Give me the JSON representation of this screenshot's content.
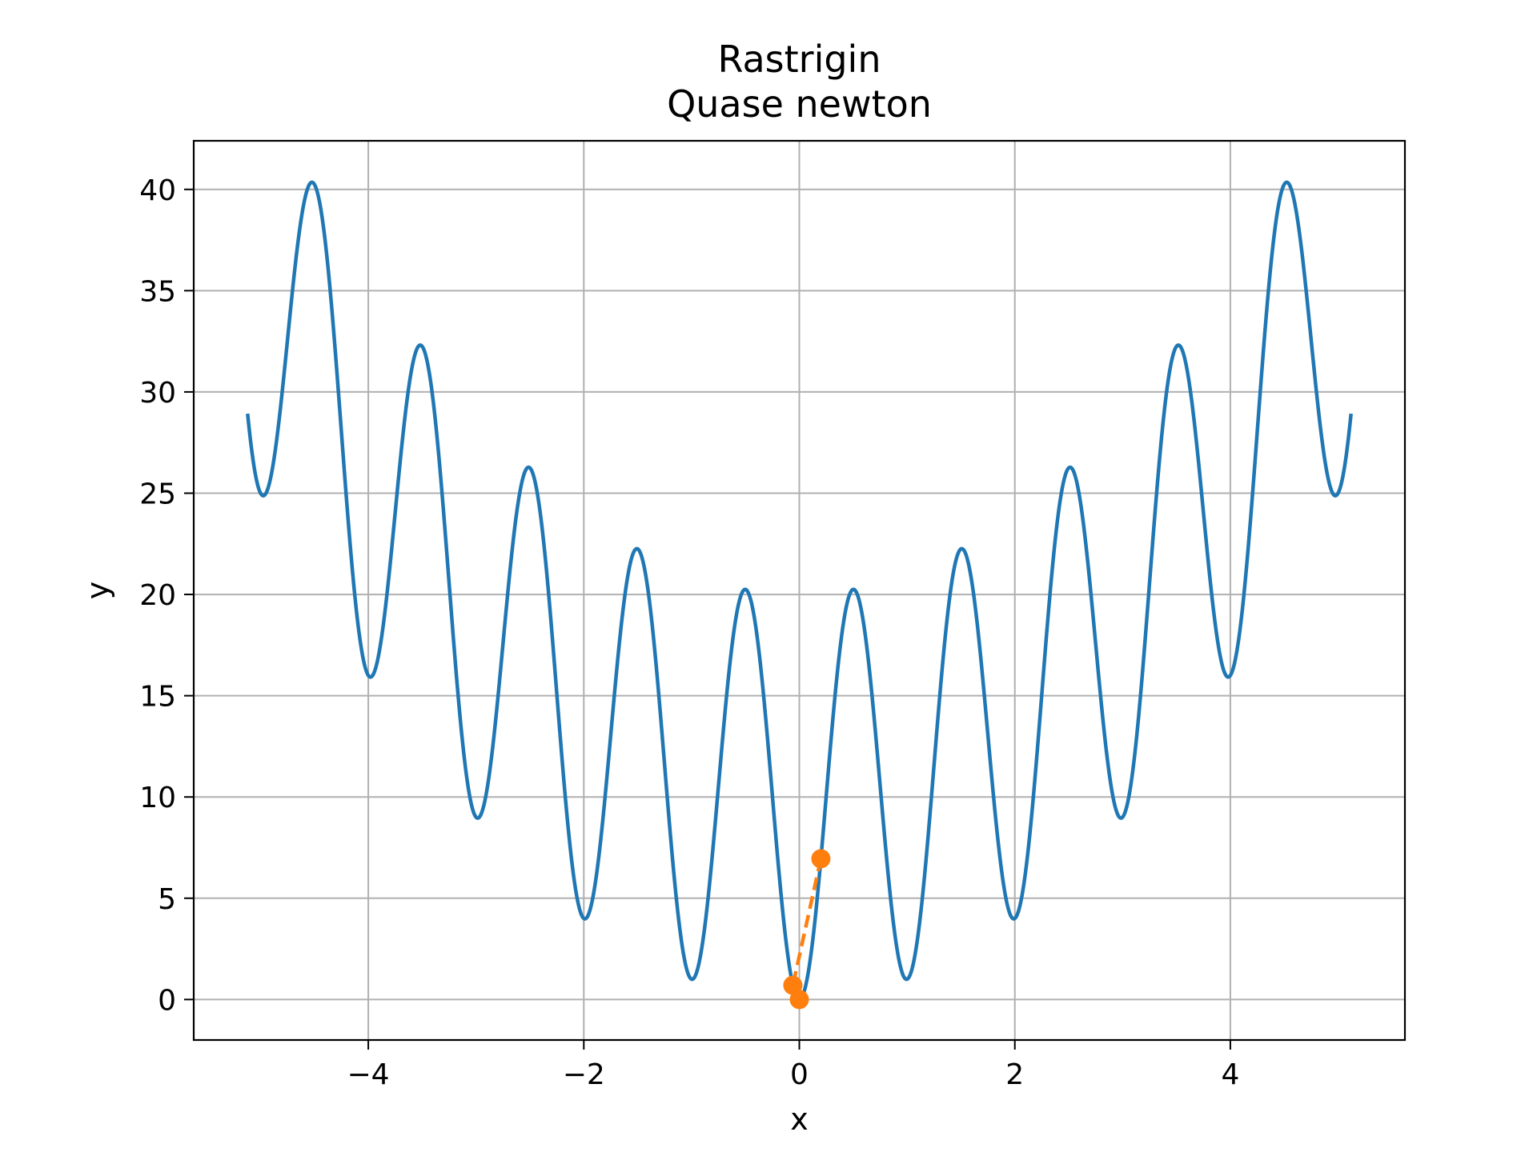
{
  "chart_data": {
    "type": "line",
    "title": "Rastrigin",
    "subtitle": "Quase newton",
    "xlabel": "x",
    "ylabel": "y",
    "xlim": [
      -5.62,
      5.62
    ],
    "ylim": [
      -2.0,
      42.4
    ],
    "xticks": [
      -4,
      -2,
      0,
      2,
      4
    ],
    "xtick_labels": [
      "−4",
      "−2",
      "0",
      "2",
      "4"
    ],
    "yticks": [
      0,
      5,
      10,
      15,
      20,
      25,
      30,
      35,
      40
    ],
    "ytick_labels": [
      "0",
      "5",
      "10",
      "15",
      "20",
      "25",
      "30",
      "35",
      "40"
    ],
    "grid": true,
    "legend": "none",
    "series": [
      {
        "function": "10 + x^2 - 10*cos(2*pi*x)",
        "x_range": [
          -5.12,
          5.12
        ],
        "style": "solid",
        "color": "#1f77b4"
      },
      {
        "x": [
          0.2,
          -0.06,
          0.0
        ],
        "y": [
          6.95,
          0.7,
          0.0
        ],
        "style": "dashed",
        "marker": "circle",
        "color": "#ff7f0e"
      }
    ]
  }
}
